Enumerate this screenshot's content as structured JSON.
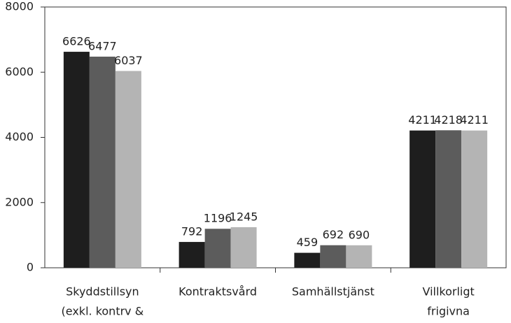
{
  "chart_data": {
    "type": "bar",
    "categories": [
      [
        "Skyddstillsyn",
        "(exkl. kontrv &"
      ],
      [
        "Kontraktsvård"
      ],
      [
        "Samhällstjänst"
      ],
      [
        "Villkorligt",
        "frigivna"
      ]
    ],
    "series": [
      {
        "color": "#1e1e1e",
        "values": [
          6626,
          792,
          459,
          4211
        ]
      },
      {
        "color": "#5c5c5c",
        "values": [
          6477,
          1196,
          692,
          4218
        ]
      },
      {
        "color": "#b4b4b4",
        "values": [
          6037,
          1245,
          690,
          4211
        ]
      }
    ],
    "ylim": [
      0,
      8000
    ],
    "yticks": [
      0,
      2000,
      4000,
      6000,
      8000
    ]
  }
}
